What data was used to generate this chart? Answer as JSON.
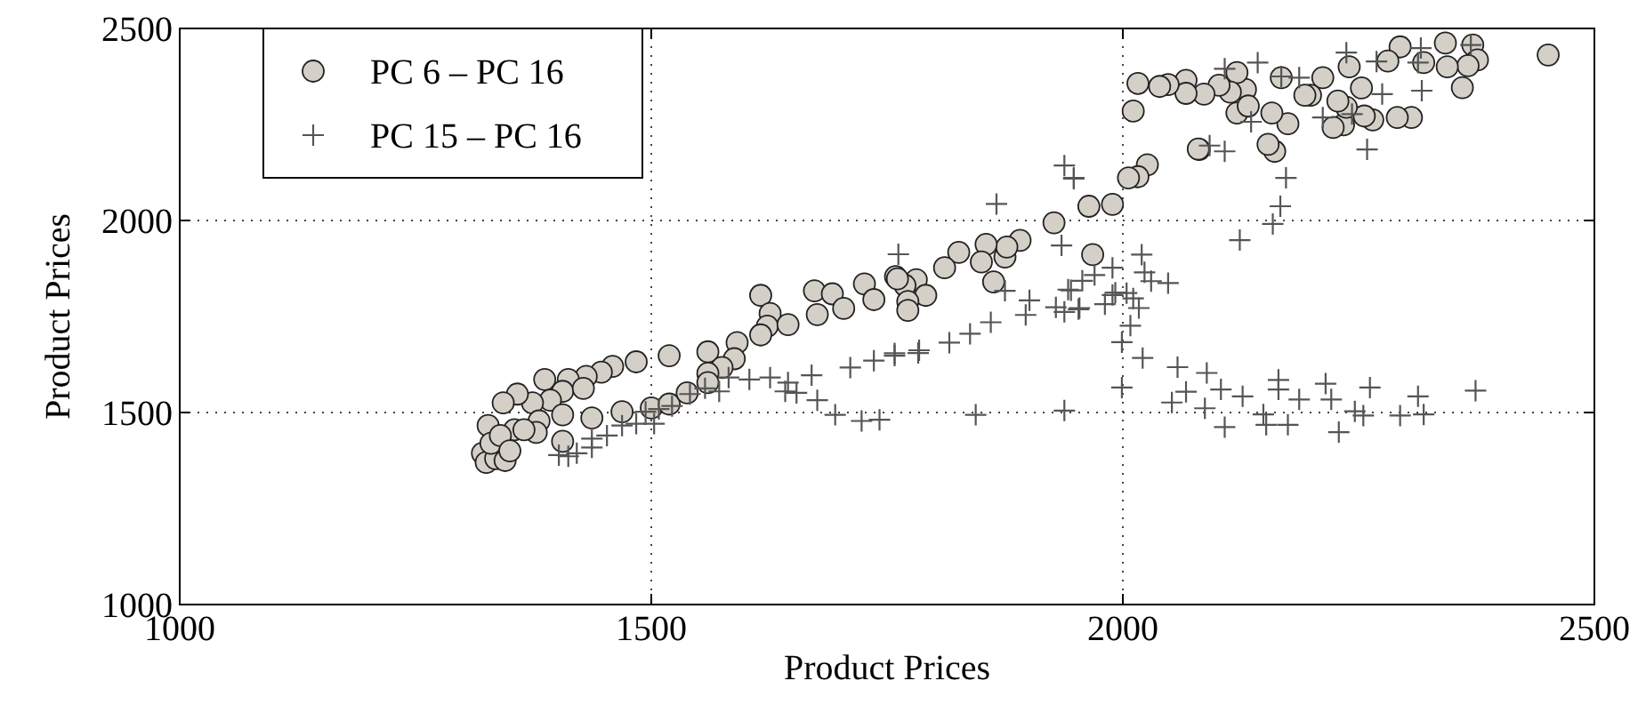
{
  "chart_data": {
    "type": "scatter",
    "xlabel": "Product Prices",
    "ylabel": "Product Prices",
    "xlim": [
      1000,
      2500
    ],
    "ylim": [
      1000,
      2500
    ],
    "xticks": [
      1000,
      1500,
      2000,
      2500
    ],
    "yticks": [
      1000,
      1500,
      2000,
      2500
    ],
    "grid": true,
    "legend": "top left",
    "series": [
      {
        "name": "PC 6 – PC 16",
        "color": "#d4d0c8",
        "marker": "circle",
        "x": [
          2451,
          2342,
          2371,
          2376,
          2366,
          2344,
          2360,
          2319,
          2294,
          2281,
          2306,
          2291,
          2265,
          2256,
          2240,
          2253,
          2234,
          2223,
          2237,
          2228,
          2212,
          2199,
          2193,
          2175,
          2168,
          2158,
          2161,
          2154,
          2130,
          2121,
          2121,
          2133,
          2114,
          2102,
          2086,
          2067,
          2067,
          2048,
          2039,
          2016,
          2011,
          2081,
          2026,
          2016,
          2006,
          1989,
          1964,
          1968,
          2080,
          1927,
          1891,
          1875,
          1877,
          1855,
          1850,
          1863,
          1826,
          1811,
          1781,
          1769,
          1791,
          1772,
          1772,
          1759,
          1616,
          1626,
          1623,
          1616,
          1645,
          1673,
          1692,
          1704,
          1676,
          1726,
          1736,
          1761,
          1591,
          1588,
          1560,
          1575,
          1560,
          1519,
          1484,
          1459,
          1447,
          1431,
          1412,
          1387,
          1406,
          1428,
          1393,
          1374,
          1358,
          1343,
          1327,
          1321,
          1355,
          1381,
          1406,
          1437,
          1469,
          1500,
          1519,
          1538,
          1560,
          1406,
          1378,
          1325,
          1335,
          1345,
          1330,
          1340,
          1365,
          1350
        ],
        "values": [
          2431,
          2462,
          2457,
          2418,
          2403,
          2400,
          2346,
          2411,
          2452,
          2415,
          2268,
          2268,
          2262,
          2272,
          2400,
          2345,
          2249,
          2242,
          2295,
          2311,
          2372,
          2326,
          2326,
          2252,
          2372,
          2280,
          2180,
          2198,
          2341,
          2385,
          2280,
          2298,
          2334,
          2352,
          2329,
          2365,
          2331,
          2354,
          2349,
          2357,
          2285,
          2185,
          2145,
          2114,
          2111,
          2042,
          2037,
          1911,
          2186,
          1994,
          1948,
          1905,
          1931,
          1938,
          1892,
          1840,
          1917,
          1877,
          1846,
          1831,
          1805,
          1789,
          1766,
          1854,
          1805,
          1758,
          1725,
          1702,
          1729,
          1817,
          1809,
          1771,
          1755,
          1835,
          1794,
          1848,
          1682,
          1640,
          1658,
          1617,
          1602,
          1648,
          1632,
          1620,
          1605,
          1594,
          1586,
          1586,
          1555,
          1563,
          1532,
          1525,
          1548,
          1525,
          1466,
          1394,
          1455,
          1478,
          1494,
          1486,
          1502,
          1512,
          1522,
          1551,
          1578,
          1425,
          1448,
          1370,
          1380,
          1375,
          1420,
          1440,
          1455,
          1400
        ]
      },
      {
        "name": "PC 15 – PC 16",
        "color": "#555555",
        "marker": "cross",
        "x": [
          2237,
          2269,
          2316,
          2313,
          2369,
          2317,
          2168,
          2187,
          2108,
          2143,
          2275,
          2212,
          2259,
          2243,
          2136,
          2092,
          2108,
          2173,
          2167,
          2159,
          2124,
          1948,
          2020,
          2023,
          2030,
          2048,
          2004,
          1989,
          1954,
          1945,
          2017,
          2008,
          1999,
          2021,
          1999,
          2058,
          2052,
          2067,
          2089,
          2087,
          2104,
          2127,
          2108,
          2149,
          2152,
          2165,
          2165,
          2175,
          2187,
          2215,
          2221,
          2229,
          2246,
          2255,
          2262,
          2294,
          2313,
          2319,
          2374,
          1866,
          1938,
          1948,
          1935,
          1762,
          1989,
          1970,
          1957,
          1942,
          1901,
          1897,
          1929,
          1938,
          1953,
          1981,
          1875,
          1992,
          2011,
          1860,
          1838,
          1816,
          1784,
          1758,
          1844,
          1938,
          1412,
          1402,
          1421,
          1437,
          1453,
          1469,
          1484,
          1503,
          1522,
          1541,
          1557,
          1572,
          1582,
          1604,
          1626,
          1645,
          1642,
          1654,
          1670,
          1676,
          1695,
          1723,
          1742,
          1711,
          1736,
          1758,
          1783,
          1437,
          1494,
          1508
        ],
        "values": [
          2437,
          2414,
          2449,
          2411,
          2457,
          2338,
          2375,
          2372,
          2395,
          2411,
          2329,
          2268,
          2185,
          2277,
          2257,
          2195,
          2180,
          2111,
          2037,
          1991,
          1949,
          2111,
          1911,
          1865,
          1842,
          1837,
          1811,
          1806,
          1772,
          1818,
          1772,
          1726,
          1683,
          1642,
          1565,
          1618,
          1526,
          1554,
          1603,
          1511,
          1560,
          1542,
          1462,
          1495,
          1468,
          1585,
          1560,
          1468,
          1534,
          1575,
          1534,
          1449,
          1503,
          1492,
          1565,
          1492,
          1542,
          1495,
          1557,
          2043,
          2143,
          2109,
          1935,
          1912,
          1877,
          1858,
          1843,
          1820,
          1792,
          1754,
          1774,
          1762,
          1769,
          1782,
          1817,
          1812,
          1797,
          1735,
          1705,
          1682,
          1662,
          1654,
          1494,
          1505,
          1386,
          1389,
          1394,
          1432,
          1440,
          1466,
          1471,
          1471,
          1517,
          1548,
          1563,
          1555,
          1591,
          1586,
          1591,
          1578,
          1555,
          1551,
          1597,
          1532,
          1494,
          1478,
          1481,
          1617,
          1635,
          1648,
          1655,
          1409,
          1502,
          1509
        ]
      }
    ]
  }
}
